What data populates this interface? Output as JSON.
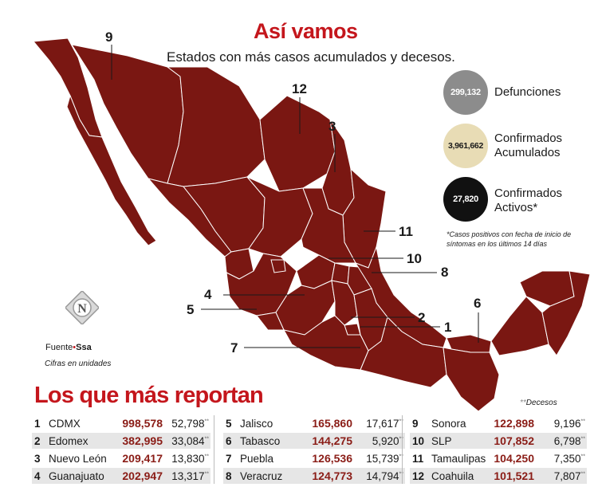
{
  "header": {
    "title": "Así vamos",
    "subtitle": "Estados con más casos acumulados y decesos."
  },
  "stats": [
    {
      "value": "299,132",
      "label_1": "Defunciones",
      "label_2": "",
      "color": "#8c8c8c",
      "text_color": "#ffffff"
    },
    {
      "value": "3,961,662",
      "label_1": "Confirmados",
      "label_2": "Acumulados",
      "color": "#e8dcb5",
      "text_color": "#1a1a1a"
    },
    {
      "value": "27,820",
      "label_1": "Confirmados",
      "label_2": "Activos*",
      "color": "#111111",
      "text_color": "#ffffff"
    }
  ],
  "note": "*Casos positivos con fecha de inicio de síntomas en los últimos 14 días",
  "source": {
    "prefix": "Fuente",
    "dot": "•",
    "name": "Ssa"
  },
  "units_note": "Cifras en unidades",
  "map": {
    "fill_color": "#7a1712",
    "border_color": "#ffffff",
    "labels": [
      "9",
      "12",
      "3",
      "11",
      "10",
      "8",
      "4",
      "5",
      "2",
      "1",
      "6",
      "7"
    ]
  },
  "ranking": {
    "title": "Los que más reportan",
    "decesos_note_marker": "**",
    "decesos_note": "Decesos",
    "death_marker": "**",
    "rows": [
      {
        "rank": "1",
        "state": "CDMX",
        "cases": "998,578",
        "deaths": "52,798"
      },
      {
        "rank": "2",
        "state": "Edomex",
        "cases": "382,995",
        "deaths": "33,084"
      },
      {
        "rank": "3",
        "state": "Nuevo León",
        "cases": "209,417",
        "deaths": "13,830"
      },
      {
        "rank": "4",
        "state": "Guanajuato",
        "cases": "202,947",
        "deaths": "13,317"
      },
      {
        "rank": "5",
        "state": "Jalisco",
        "cases": "165,860",
        "deaths": "17,617"
      },
      {
        "rank": "6",
        "state": "Tabasco",
        "cases": "144,275",
        "deaths": "5,920"
      },
      {
        "rank": "7",
        "state": "Puebla",
        "cases": "126,536",
        "deaths": "15,739"
      },
      {
        "rank": "8",
        "state": "Veracruz",
        "cases": "124,773",
        "deaths": "14,794"
      },
      {
        "rank": "9",
        "state": "Sonora",
        "cases": "122,898",
        "deaths": "9,196"
      },
      {
        "rank": "10",
        "state": "SLP",
        "cases": "107,852",
        "deaths": "6,798"
      },
      {
        "rank": "11",
        "state": "Tamaulipas",
        "cases": "104,250",
        "deaths": "7,350"
      },
      {
        "rank": "12",
        "state": "Coahuila",
        "cases": "101,521",
        "deaths": "7,807"
      }
    ]
  }
}
